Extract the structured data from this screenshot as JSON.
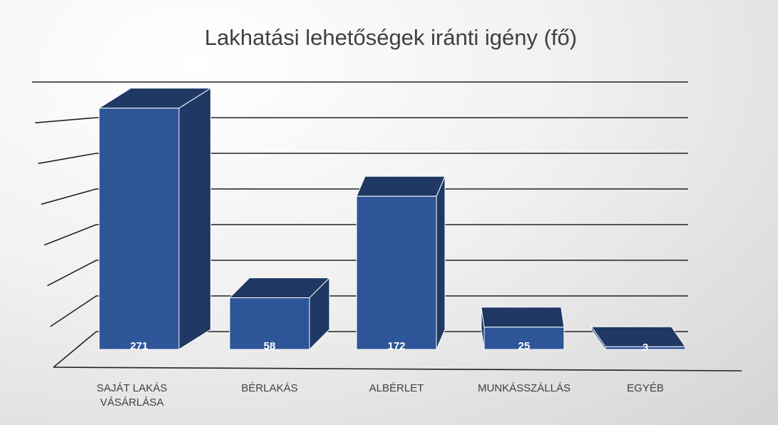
{
  "chart_data": {
    "type": "bar3d",
    "title": "Lakhatási lehetőségek iránti igény (fő)",
    "categories": [
      "SAJÁT LAKÁS VÁSÁRLÁSA",
      "BÉRLAKÁS",
      "ALBÉRLET",
      "MUNKÁSSZÁLLÁS",
      "EGYÉB"
    ],
    "values": [
      271,
      58,
      172,
      25,
      3
    ],
    "color": "#2e5597",
    "side_color": "#1f3864",
    "ylim": [
      0,
      350
    ],
    "yticks": [
      0,
      50,
      100,
      150,
      200,
      250,
      300,
      350
    ],
    "grid": true
  }
}
